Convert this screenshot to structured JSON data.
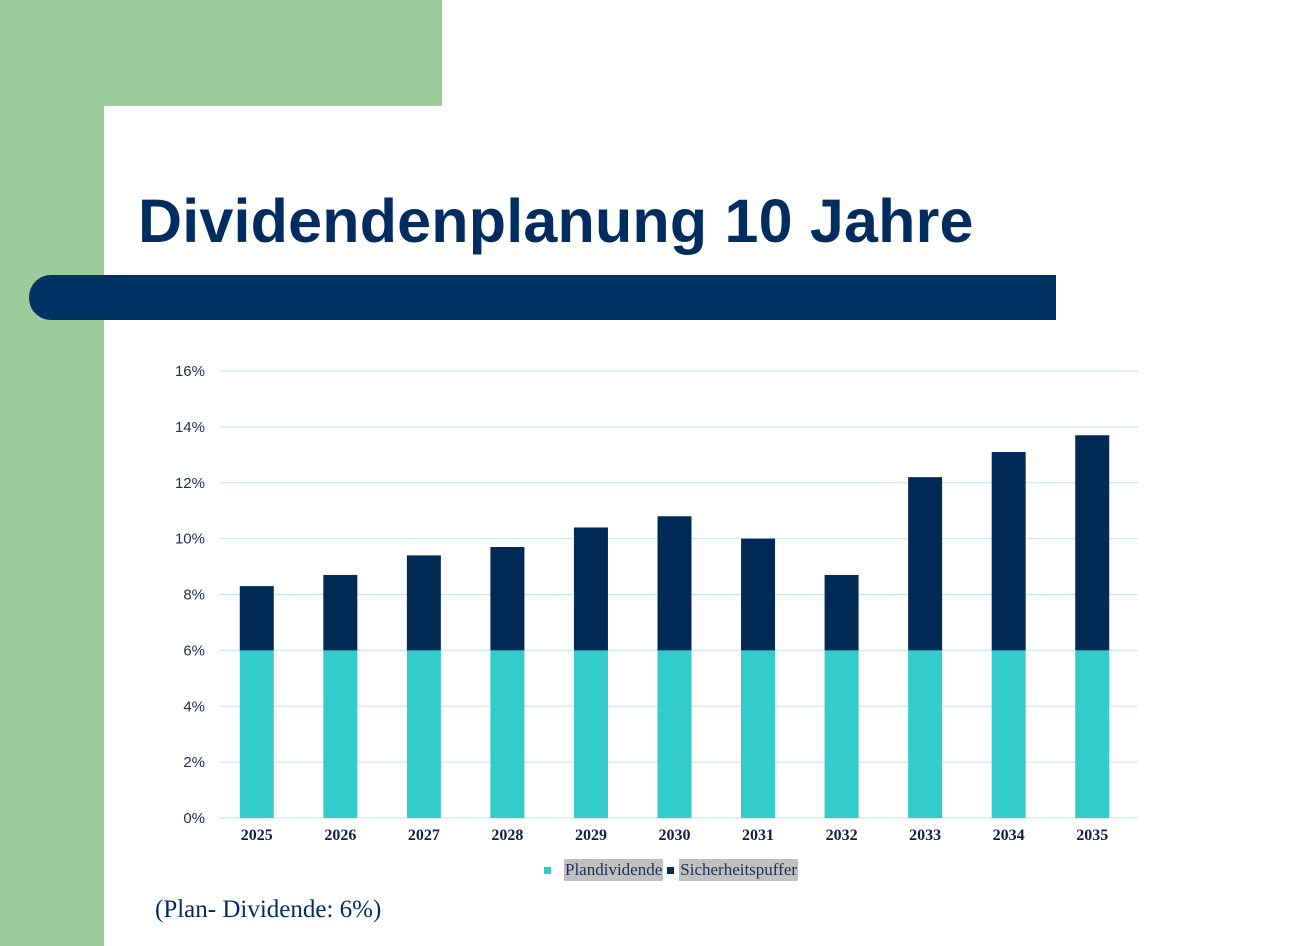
{
  "slide": {
    "title": "Dividendenplanung 10 Jahre",
    "footnote": "(Plan- Dividende: 6%)"
  },
  "colors": {
    "background_green": "#9ccc9b",
    "title_blue": "#012c5f",
    "rule_blue": "#013264",
    "plandividende": "#33cccc",
    "sicherheitspuffer": "#012a57",
    "gridline": "#c5e3f2"
  },
  "chart_data": {
    "type": "bar",
    "stacked": true,
    "title": "Dividendenplanung 10 Jahre",
    "xlabel": "",
    "ylabel": "",
    "categories": [
      "2025",
      "2026",
      "2027",
      "2028",
      "2029",
      "2030",
      "2031",
      "2032",
      "2033",
      "2034",
      "2035"
    ],
    "series": [
      {
        "name": "Plandividende",
        "color": "#33cccc",
        "values": [
          6.0,
          6.0,
          6.0,
          6.0,
          6.0,
          6.0,
          6.0,
          6.0,
          6.0,
          6.0,
          6.0
        ]
      },
      {
        "name": "Sicherheitspuffer",
        "color": "#012a57",
        "values": [
          2.3,
          2.7,
          3.4,
          3.7,
          4.4,
          4.8,
          4.0,
          2.7,
          6.2,
          7.1,
          7.7
        ]
      }
    ],
    "ylim": [
      0,
      16
    ],
    "yticks": [
      0,
      2,
      4,
      6,
      8,
      10,
      12,
      14,
      16
    ],
    "ytick_labels": [
      "0%",
      "2%",
      "4%",
      "6%",
      "8%",
      "10%",
      "12%",
      "14%",
      "16%"
    ],
    "grid": true,
    "legend": {
      "position": "bottom",
      "entries": [
        "Plandividende",
        "Sicherheitspuffer"
      ]
    }
  }
}
